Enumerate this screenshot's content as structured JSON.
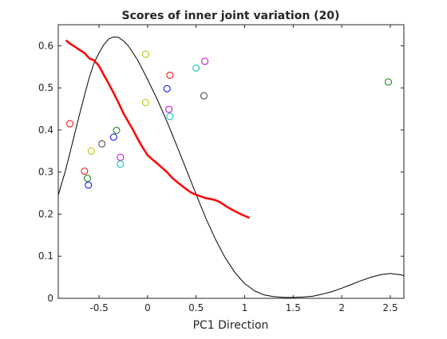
{
  "chart_data": {
    "type": "scatter",
    "title": "Scores of inner joint variation (20)",
    "xlabel": "PC1 Direction",
    "ylabel": "",
    "xlim": [
      -0.92,
      2.64
    ],
    "ylim": [
      0,
      0.65
    ],
    "xticks": [
      -0.5,
      0,
      0.5,
      1,
      1.5,
      2,
      2.5
    ],
    "xtick_labels": [
      "-0.5",
      "0",
      "0.5",
      "1",
      "1.5",
      "2",
      "2.5"
    ],
    "yticks": [
      0,
      0.1,
      0.2,
      0.3,
      0.4,
      0.5,
      0.6
    ],
    "ytick_labels": [
      "0",
      "0.1",
      "0.2",
      "0.3",
      "0.4",
      "0.5",
      "0.6"
    ],
    "grid": false,
    "box": true,
    "points": [
      {
        "x": -0.8,
        "y": 0.415,
        "color": "#ff0000"
      },
      {
        "x": -0.65,
        "y": 0.302,
        "color": "#ff0000"
      },
      {
        "x": -0.62,
        "y": 0.285,
        "color": "#008000"
      },
      {
        "x": -0.61,
        "y": 0.269,
        "color": "#0000ff"
      },
      {
        "x": -0.58,
        "y": 0.35,
        "color": "#bfbf00"
      },
      {
        "x": -0.47,
        "y": 0.367,
        "color": "#404040"
      },
      {
        "x": -0.35,
        "y": 0.383,
        "color": "#0000ff"
      },
      {
        "x": -0.32,
        "y": 0.399,
        "color": "#008000"
      },
      {
        "x": -0.28,
        "y": 0.335,
        "color": "#bf00bf"
      },
      {
        "x": -0.28,
        "y": 0.319,
        "color": "#00bfbf"
      },
      {
        "x": -0.02,
        "y": 0.465,
        "color": "#bfbf00"
      },
      {
        "x": -0.02,
        "y": 0.58,
        "color": "#bfbf00"
      },
      {
        "x": 0.2,
        "y": 0.498,
        "color": "#0000ff"
      },
      {
        "x": 0.22,
        "y": 0.449,
        "color": "#bf00bf"
      },
      {
        "x": 0.23,
        "y": 0.432,
        "color": "#00bfbf"
      },
      {
        "x": 0.23,
        "y": 0.53,
        "color": "#ff0000"
      },
      {
        "x": 0.5,
        "y": 0.547,
        "color": "#00bfbf"
      },
      {
        "x": 0.58,
        "y": 0.481,
        "color": "#404040"
      },
      {
        "x": 0.59,
        "y": 0.563,
        "color": "#bf00bf"
      },
      {
        "x": 2.48,
        "y": 0.514,
        "color": "#008000"
      }
    ],
    "series": [
      {
        "kind": "line",
        "color": "#000000",
        "x": [
          -0.92,
          -0.85,
          -0.8,
          -0.75,
          -0.7,
          -0.65,
          -0.6,
          -0.55,
          -0.5,
          -0.45,
          -0.4,
          -0.35,
          -0.3,
          -0.25,
          -0.2,
          -0.15,
          -0.1,
          -0.05,
          0.0,
          0.1,
          0.2,
          0.3,
          0.4,
          0.5,
          0.6,
          0.7,
          0.8,
          0.9,
          1.0,
          1.1,
          1.2,
          1.3,
          1.4,
          1.5,
          1.6,
          1.7,
          1.8,
          1.9,
          2.0,
          2.1,
          2.2,
          2.3,
          2.4,
          2.5,
          2.6,
          2.64
        ],
        "y": [
          0.245,
          0.3,
          0.345,
          0.392,
          0.438,
          0.482,
          0.525,
          0.56,
          0.583,
          0.603,
          0.616,
          0.621,
          0.62,
          0.612,
          0.6,
          0.583,
          0.565,
          0.543,
          0.52,
          0.472,
          0.42,
          0.363,
          0.305,
          0.247,
          0.19,
          0.14,
          0.096,
          0.061,
          0.035,
          0.018,
          0.008,
          0.004,
          0.002,
          0.002,
          0.003,
          0.005,
          0.01,
          0.016,
          0.024,
          0.033,
          0.042,
          0.05,
          0.056,
          0.059,
          0.056,
          0.054
        ]
      },
      {
        "kind": "line",
        "color": "#ff0000",
        "x": [
          -0.84,
          -0.8,
          -0.75,
          -0.7,
          -0.65,
          -0.6,
          -0.55,
          -0.5,
          -0.45,
          -0.4,
          -0.35,
          -0.3,
          -0.25,
          -0.2,
          -0.15,
          -0.1,
          -0.05,
          0.0,
          0.05,
          0.1,
          0.15,
          0.2,
          0.25,
          0.3,
          0.35,
          0.4,
          0.45,
          0.5,
          0.55,
          0.6,
          0.65,
          0.7,
          0.75,
          0.8,
          0.85,
          0.9,
          0.95,
          1.0,
          1.05
        ],
        "y": [
          0.613,
          0.605,
          0.598,
          0.59,
          0.583,
          0.57,
          0.565,
          0.552,
          0.53,
          0.51,
          0.488,
          0.465,
          0.44,
          0.42,
          0.4,
          0.378,
          0.358,
          0.34,
          0.33,
          0.32,
          0.31,
          0.3,
          0.287,
          0.277,
          0.268,
          0.259,
          0.251,
          0.246,
          0.242,
          0.238,
          0.236,
          0.233,
          0.228,
          0.22,
          0.213,
          0.207,
          0.201,
          0.196,
          0.191
        ]
      }
    ]
  }
}
